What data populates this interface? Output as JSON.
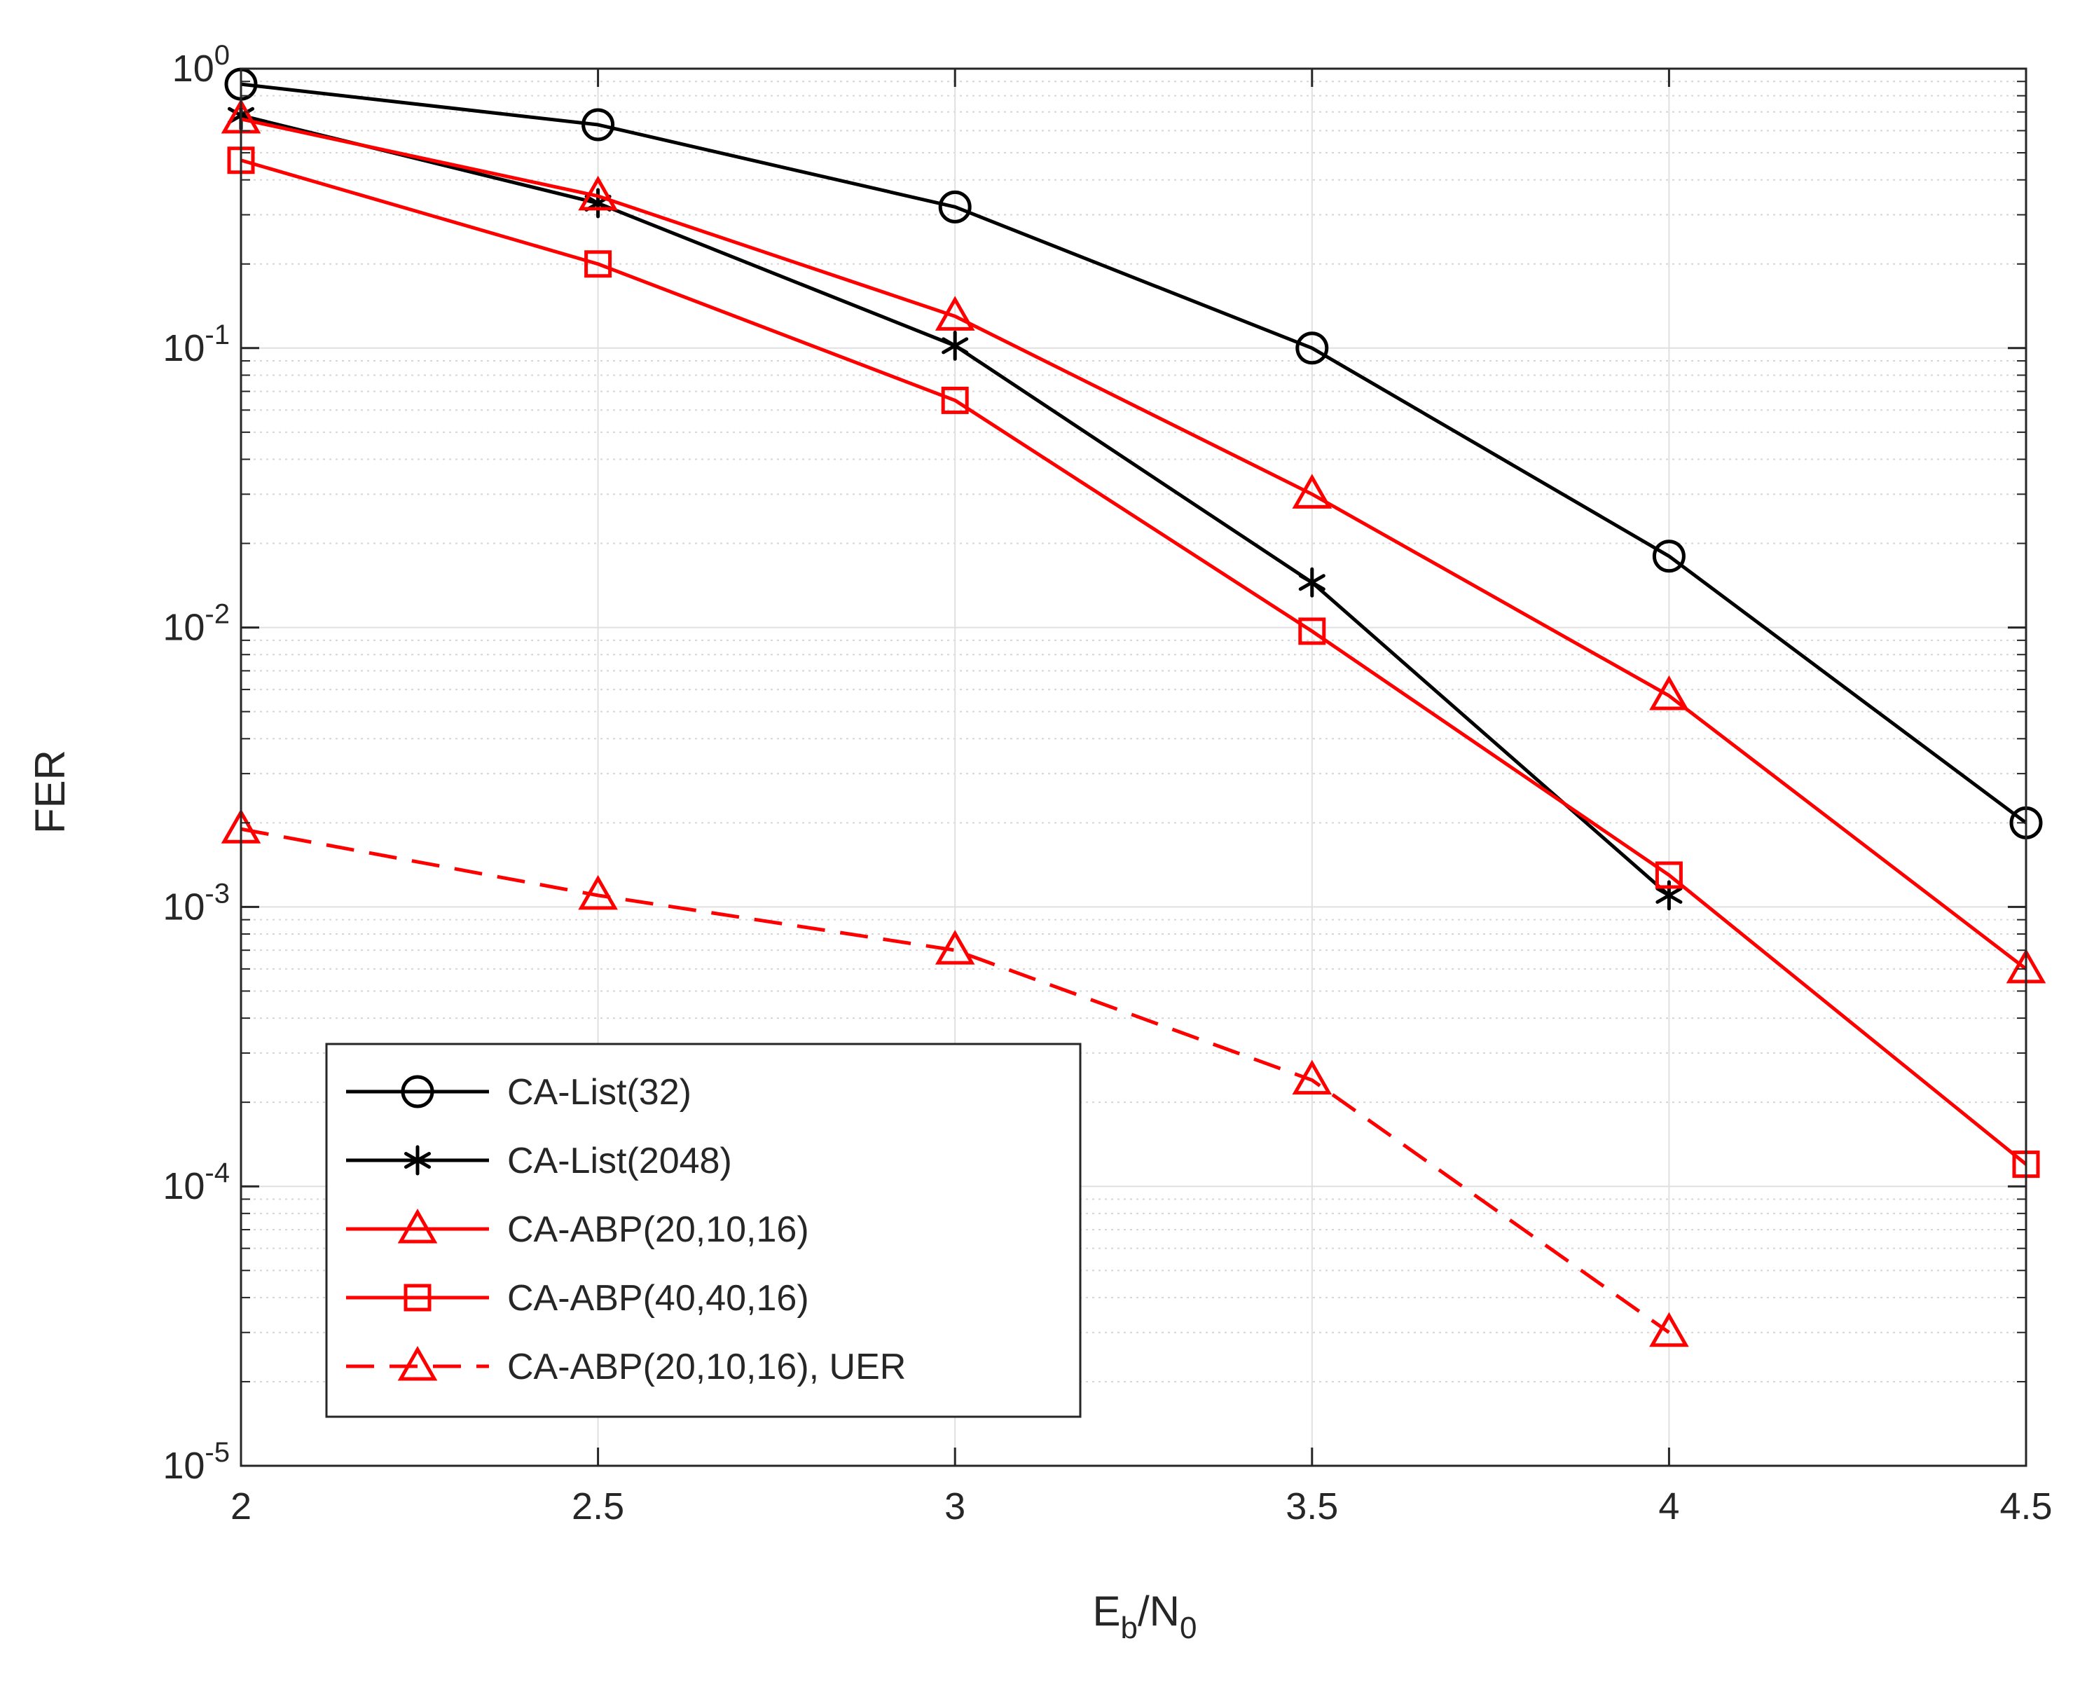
{
  "chart_data": {
    "type": "line",
    "title": "",
    "xlabel": {
      "main": "E",
      "sub1": "b",
      "sep": "/N",
      "sub2": "0"
    },
    "ylabel": "FER",
    "xlim": [
      2,
      4.5
    ],
    "ylim": [
      1e-05,
      1
    ],
    "yscale": "log",
    "grid": true,
    "minor_grid": true,
    "xticks": [
      2,
      2.5,
      3,
      3.5,
      4,
      4.5
    ],
    "xtick_labels": [
      "2",
      "2.5",
      "3",
      "3.5",
      "4",
      "4.5"
    ],
    "yticks": [
      {
        "value": 1e-05,
        "base": "10",
        "exp": "-5"
      },
      {
        "value": 0.0001,
        "base": "10",
        "exp": "-4"
      },
      {
        "value": 0.001,
        "base": "10",
        "exp": "-3"
      },
      {
        "value": 0.01,
        "base": "10",
        "exp": "-2"
      },
      {
        "value": 0.1,
        "base": "10",
        "exp": "-1"
      },
      {
        "value": 1,
        "base": "10",
        "exp": "0"
      }
    ],
    "legend_position": "lower-left",
    "series": [
      {
        "name": "CA-List(32)",
        "color": "#000000",
        "marker": "circle",
        "dash": "solid",
        "x": [
          2,
          2.5,
          3,
          3.5,
          4,
          4.5
        ],
        "y": [
          0.88,
          0.63,
          0.32,
          0.1,
          0.018,
          0.002
        ]
      },
      {
        "name": "CA-List(2048)",
        "color": "#000000",
        "marker": "asterisk",
        "dash": "solid",
        "x": [
          2,
          2.5,
          3,
          3.5,
          4
        ],
        "y": [
          0.68,
          0.33,
          0.102,
          0.0145,
          0.0011
        ]
      },
      {
        "name": "CA-ABP(20,10,16)",
        "color": "#ff0000",
        "marker": "triangle",
        "dash": "solid",
        "x": [
          2,
          2.5,
          3,
          3.5,
          4,
          4.5
        ],
        "y": [
          0.66,
          0.35,
          0.13,
          0.03,
          0.0057,
          0.0006
        ]
      },
      {
        "name": "CA-ABP(40,40,16)",
        "color": "#ff0000",
        "marker": "square",
        "dash": "solid",
        "x": [
          2,
          2.5,
          3,
          3.5,
          4,
          4.5
        ],
        "y": [
          0.47,
          0.2,
          0.065,
          0.0097,
          0.0013,
          0.00012
        ]
      },
      {
        "name": "CA-ABP(20,10,16), UER",
        "color": "#ff0000",
        "marker": "triangle",
        "dash": "dashed",
        "x": [
          2,
          2.5,
          3,
          3.5,
          4
        ],
        "y": [
          0.0019,
          0.0011,
          0.0007,
          0.00024,
          3e-05
        ]
      }
    ]
  }
}
